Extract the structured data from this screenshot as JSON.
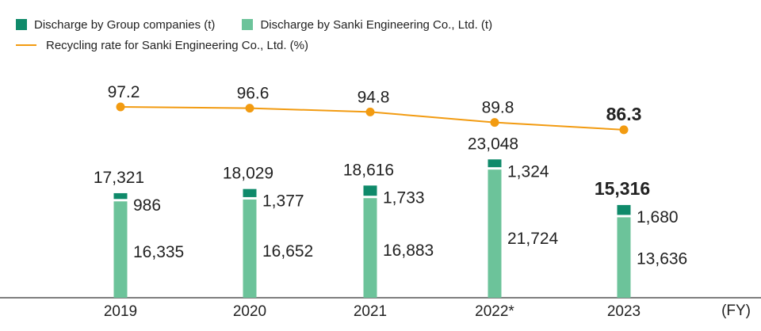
{
  "legend": {
    "group": "Discharge by Group companies (t)",
    "sanki": "Discharge by Sanki Engineering Co., Ltd. (t)",
    "recycling": "Recycling rate  for Sanki Engineering Co., Ltd. (%)"
  },
  "colors": {
    "group": "#0f8a6a",
    "sanki": "#6cc39a",
    "line": "#f29b11",
    "axis": "#555555"
  },
  "chart_data": {
    "type": "bar",
    "stacked": true,
    "categories": [
      "2019",
      "2020",
      "2021",
      "2022*",
      "2023"
    ],
    "x_unit": "(FY)",
    "series": [
      {
        "name": "Discharge by Sanki Engineering Co., Ltd. (t)",
        "values": [
          16335,
          16652,
          16883,
          21724,
          13636
        ],
        "labels": [
          "16,335",
          "16,652",
          "16,883",
          "21,724",
          "13,636"
        ]
      },
      {
        "name": "Discharge by Group companies (t)",
        "values": [
          986,
          1377,
          1733,
          1324,
          1680
        ],
        "labels": [
          "986",
          "1,377",
          "1,733",
          "1,324",
          "1,680"
        ]
      }
    ],
    "totals": {
      "values": [
        17321,
        18029,
        18616,
        23048,
        15316
      ],
      "labels": [
        "17,321",
        "18,029",
        "18,616",
        "23,048",
        "15,316"
      ]
    },
    "line_series": {
      "name": "Recycling rate  for Sanki Engineering Co., Ltd. (%)",
      "values": [
        97.2,
        96.6,
        94.8,
        89.8,
        86.3
      ],
      "labels": [
        "97.2",
        "96.6",
        "94.8",
        "89.8",
        "86.3"
      ]
    },
    "highlight_index": 4
  }
}
